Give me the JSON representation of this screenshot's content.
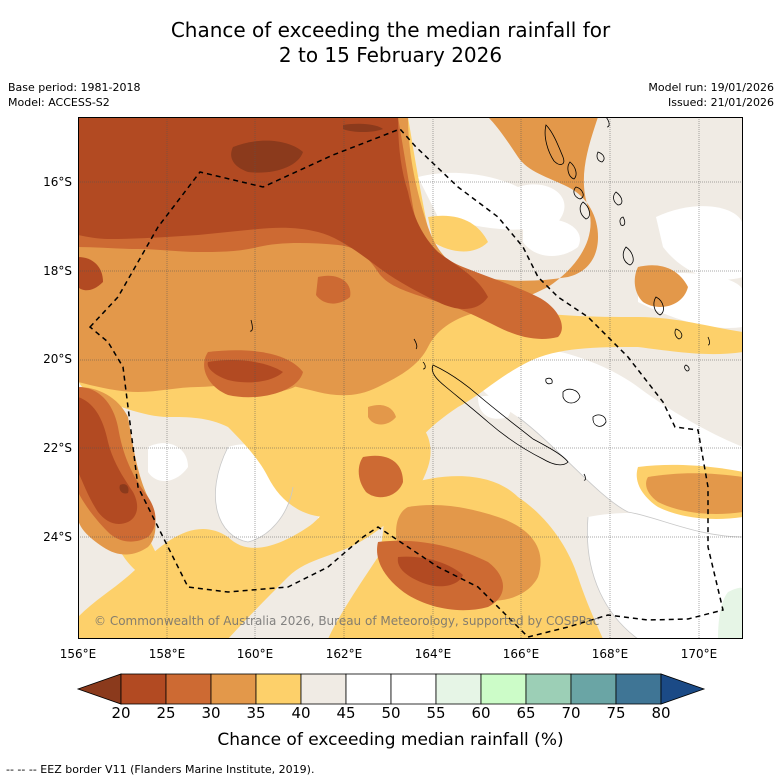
{
  "title_line1": "Chance of exceeding the median rainfall for",
  "title_line2": "2 to 15 February 2026",
  "meta": {
    "base_period": "Base period: 1981-2018",
    "model": "Model: ACCESS-S2",
    "model_run": "Model run: 19/01/2026",
    "issued": "Issued: 21/01/2026"
  },
  "lat_ticks": [
    "16°S",
    "18°S",
    "20°S",
    "22°S",
    "24°S"
  ],
  "lon_ticks": [
    "156°E",
    "158°E",
    "160°E",
    "162°E",
    "164°E",
    "166°E",
    "168°E",
    "170°E"
  ],
  "colorbar": {
    "ticks": [
      "20",
      "25",
      "30",
      "35",
      "40",
      "45",
      "50",
      "55",
      "60",
      "65",
      "70",
      "75",
      "80"
    ],
    "label": "Chance of exceeding median rainfall (%)",
    "colors": [
      "#8b3a1c",
      "#b24a22",
      "#cd6a33",
      "#e3984a",
      "#fdd06a",
      "#f0ebe4",
      "#ffffff",
      "#ffffff",
      "#e6f5e6",
      "#ccfcc8",
      "#9ccfb6",
      "#6aa5a5",
      "#3f7595",
      "#1b4a86"
    ]
  },
  "copyright": "© Commonwealth of Australia 2026, Bureau of Meteorology, supported by COSPPac",
  "legend": "--  --  -- EEZ border V11 (Flanders Marine Institute, 2019)."
}
